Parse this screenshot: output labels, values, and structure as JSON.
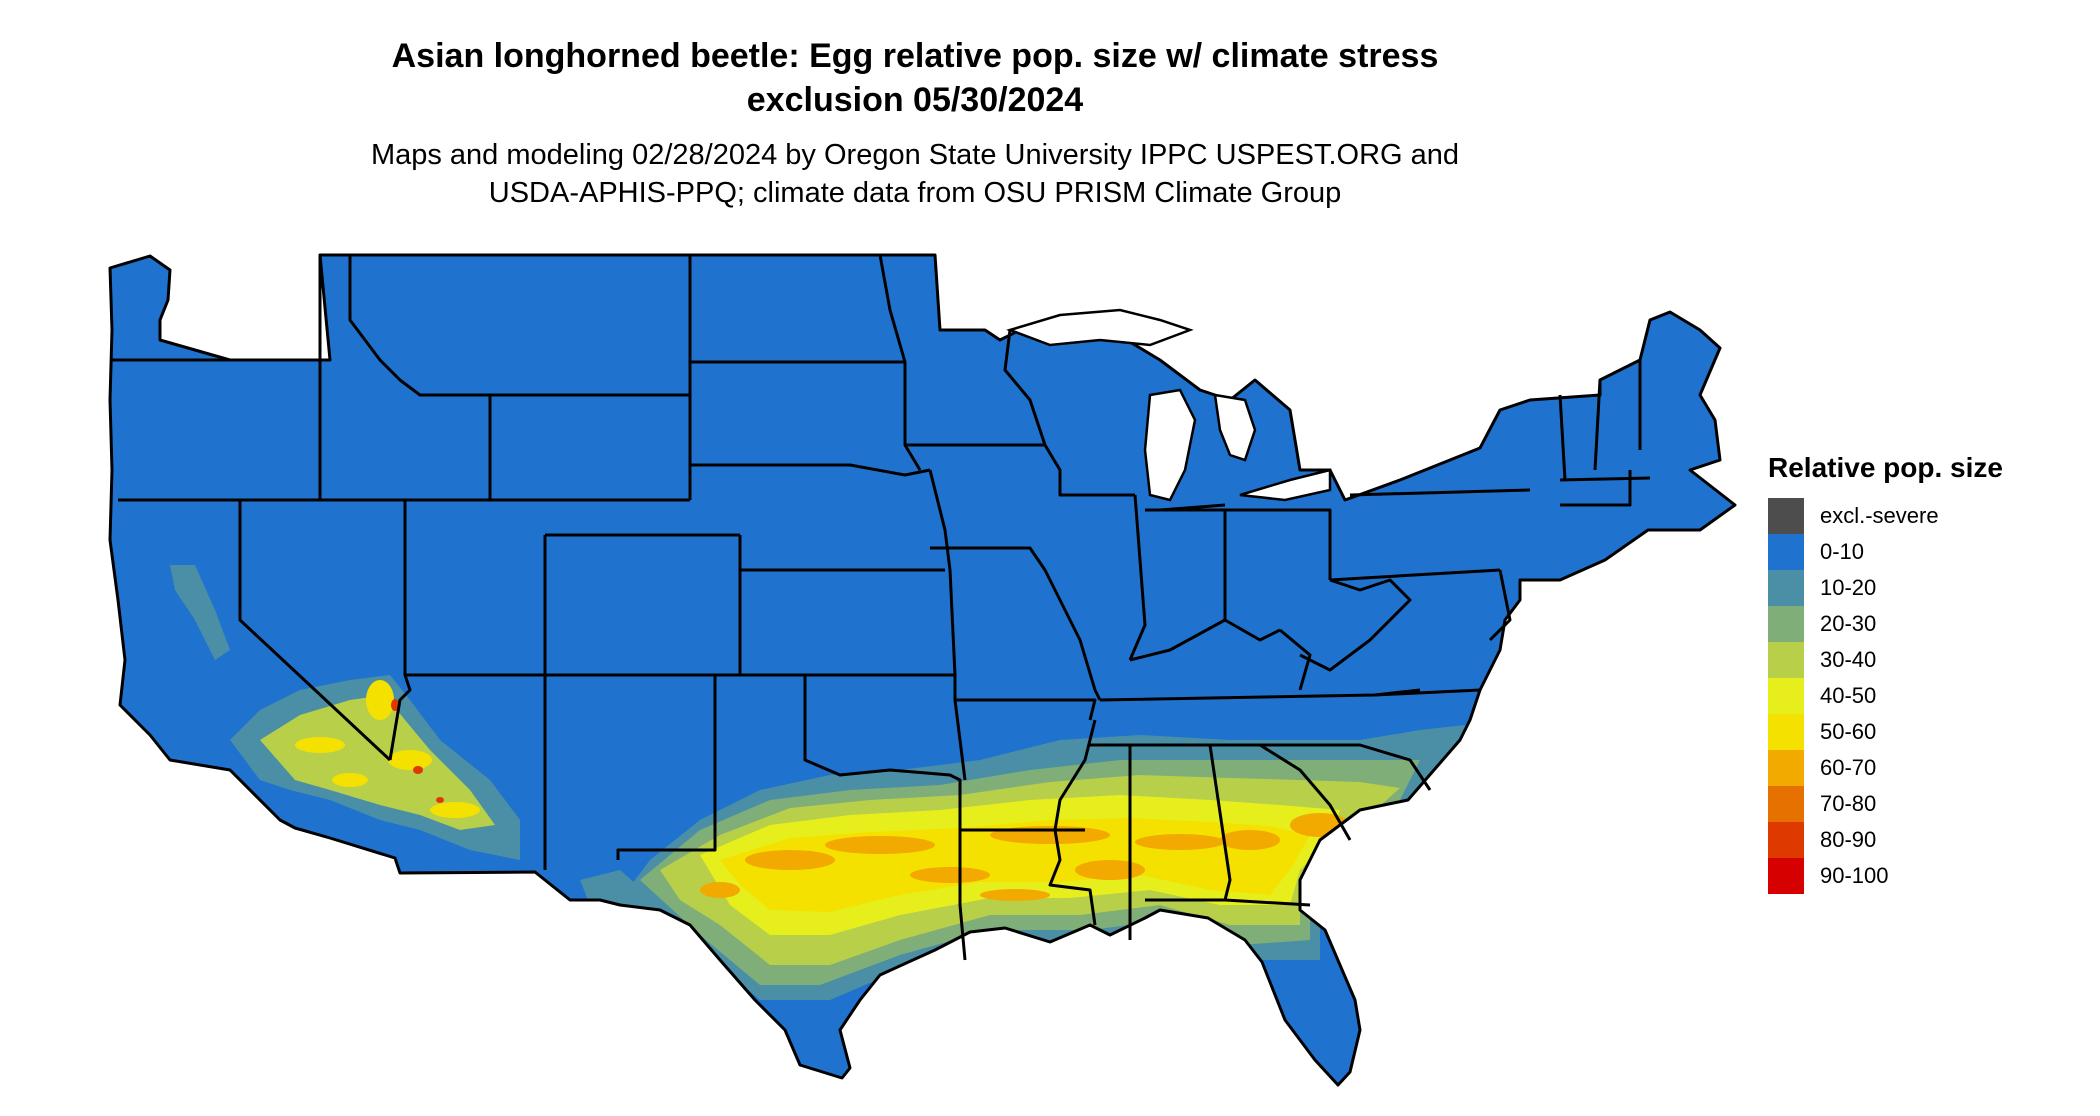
{
  "title_line1": "Asian longhorned beetle: Egg relative pop. size w/ climate stress",
  "title_line2": "exclusion 05/30/2024",
  "subtitle_line1": "Maps and modeling 02/28/2024 by Oregon State University IPPC USPEST.ORG and",
  "subtitle_line2": "USDA-APHIS-PPQ; climate data from OSU PRISM Climate Group",
  "legend": {
    "title": "Relative pop. size",
    "items": [
      {
        "label": "excl.-severe",
        "color": "#4d4d4d"
      },
      {
        "label": "0-10",
        "color": "#1f73cf"
      },
      {
        "label": "10-20",
        "color": "#4a8fa6"
      },
      {
        "label": "20-30",
        "color": "#7fae78"
      },
      {
        "label": "30-40",
        "color": "#b8cf4a"
      },
      {
        "label": "40-50",
        "color": "#e6ef1c"
      },
      {
        "label": "50-60",
        "color": "#f5e100"
      },
      {
        "label": "60-70",
        "color": "#f2a900"
      },
      {
        "label": "70-80",
        "color": "#e67100"
      },
      {
        "label": "80-90",
        "color": "#de3a00"
      },
      {
        "label": "90-100",
        "color": "#d60000"
      }
    ]
  }
}
